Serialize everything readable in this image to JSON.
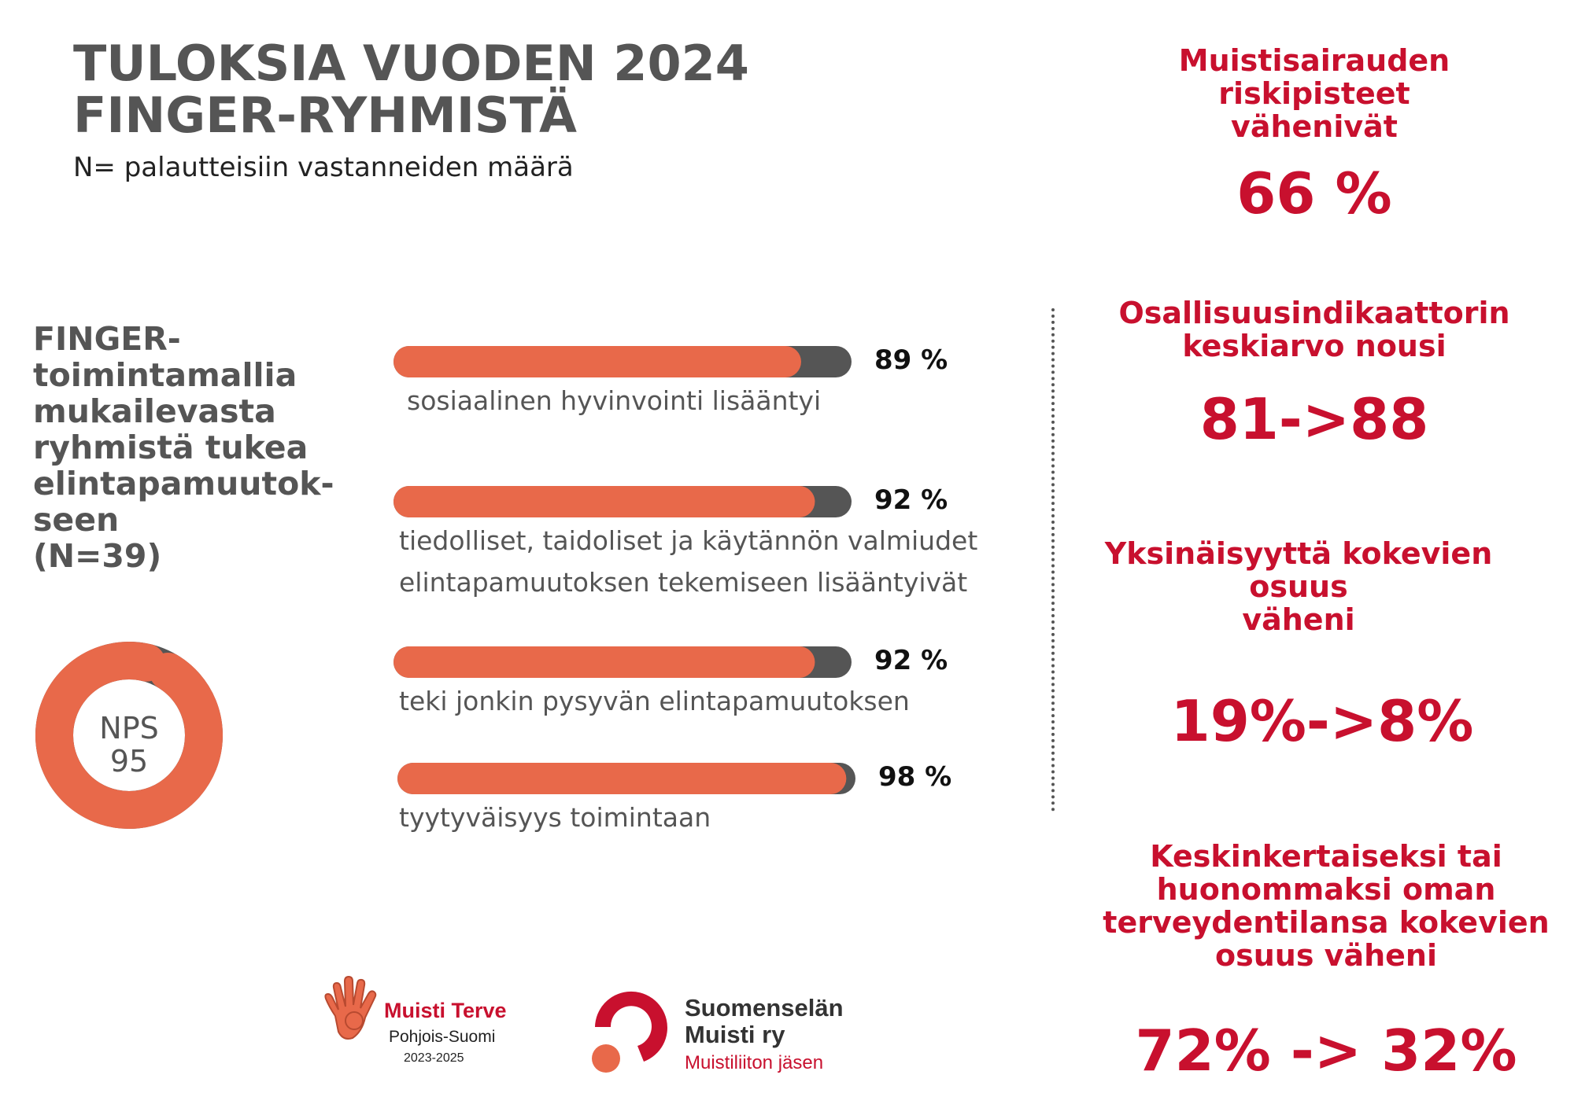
{
  "header": {
    "title_line1": "TULOKSIA VUODEN 2024",
    "title_line2": "FINGER-RYHMISTÄ",
    "subtitle": "N= palautteisiin vastanneiden määrä"
  },
  "side_statement": {
    "lines": [
      "FINGER-",
      "toimintamallia",
      "mukailevasta",
      "ryhmistä tukea",
      "elintapamuutok-",
      "seen",
      "(N=39)"
    ]
  },
  "nps": {
    "label": "NPS",
    "value": "95",
    "score": 95
  },
  "chart_data": {
    "type": "bar",
    "orientation": "horizontal",
    "max": 100,
    "categories": [
      "sosiaalinen hyvinvointi lisääntyi",
      "tiedolliset, taidoliset ja käytännön valmiudet elintapamuutoksen tekemiseen lisääntyivät",
      "teki jonkin pysyvän elintapamuutoksen",
      "tyytyväisyys toimintaan"
    ],
    "values": [
      89,
      92,
      92,
      98
    ],
    "value_labels": [
      "89 %",
      "92 %",
      "92 %",
      "98 %"
    ],
    "label_lines": [
      [
        "sosiaalinen hyvinvointi lisääntyi"
      ],
      [
        "tiedolliset, taidoliset ja käytännön valmiudet",
        "elintapamuutoksen tekemiseen lisääntyivät"
      ],
      [
        "teki jonkin pysyvän elintapamuutoksen"
      ],
      [
        "tyytyväisyys toimintaan"
      ]
    ],
    "colors": {
      "fill": "#e8694a",
      "track": "#555555"
    }
  },
  "stats": [
    {
      "heading_lines": [
        "Muistisairauden",
        "riskipisteet",
        "vähenivät"
      ],
      "value": "66 %"
    },
    {
      "heading_lines": [
        "Osallisuusindikaattorin",
        "keskiarvo nousi"
      ],
      "value": "81->88"
    },
    {
      "heading_lines": [
        "Yksinäisyyttä kokevien",
        "osuus",
        "väheni"
      ],
      "value": "19%->8%"
    },
    {
      "heading_lines": [
        "Keskinkertaiseksi tai",
        "huonommaksi oman",
        "terveydentilansa kokevien",
        "osuus väheni"
      ],
      "value": "72% -> 32%"
    }
  ],
  "logos": {
    "muisti_terve": {
      "name": "Muisti Terve",
      "region": "Pohjois-Suomi",
      "years": "2023-2025",
      "icon": "hand-icon"
    },
    "suomenselan": {
      "name_line1": "Suomenselän",
      "name_line2": "Muisti ry",
      "tagline": "Muistiliiton jäsen",
      "icon": "question-mark-logo-icon"
    }
  },
  "colors": {
    "accent_red": "#c8102e",
    "orange": "#e8694a",
    "dark_gray": "#555555"
  }
}
